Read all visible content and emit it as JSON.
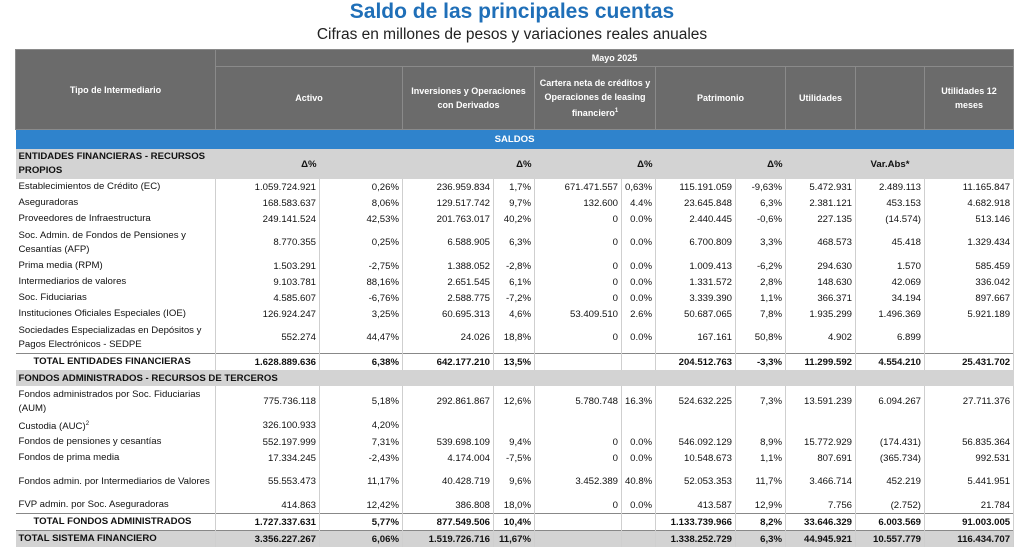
{
  "title": "Saldo de las principales cuentas",
  "subtitle": "Cifras en millones de pesos y variaciones reales anuales",
  "header": {
    "period": "Mayo 2025",
    "tipo": "Tipo de Intermediario",
    "activo": "Activo",
    "inversiones": "Inversiones y Operaciones con Derivados",
    "cartera": "Cartera neta de créditos y Operaciones de leasing financiero",
    "cartera_sup": "1",
    "patrimonio": "Patrimonio",
    "utilidades": "Utilidades",
    "utilidades12": "Utilidades 12 meses"
  },
  "saldos_label": "SALDOS",
  "sections": {
    "propios": {
      "label": "ENTIDADES FINANCIERAS - RECURSOS PROPIOS",
      "delta": "Δ%",
      "varabs": "Var.Abs*"
    },
    "terceros": {
      "label": "FONDOS ADMINISTRADOS - RECURSOS DE TERCEROS"
    }
  },
  "rows": [
    {
      "name": "Establecimientos de Crédito (EC)",
      "activo": "1.059.724.921",
      "a_pct": "0,26%",
      "inv": "236.959.834",
      "i_pct": "1,7%",
      "cartera": "671.471.557",
      "c_pct": "0,63%",
      "patrimonio": "115.191.059",
      "p_pct": "-9,63%",
      "util": "5.472.931",
      "varabs": "2.489.113",
      "util12": "11.165.847"
    },
    {
      "name": "Aseguradoras",
      "activo": "168.583.637",
      "a_pct": "8,06%",
      "inv": "129.517.742",
      "i_pct": "9,7%",
      "cartera": "132.600",
      "c_pct": "4.4%",
      "patrimonio": "23.645.848",
      "p_pct": "6,3%",
      "util": "2.381.121",
      "varabs": "453.153",
      "util12": "4.682.918"
    },
    {
      "name": "Proveedores de Infraestructura",
      "activo": "249.141.524",
      "a_pct": "42,53%",
      "inv": "201.763.017",
      "i_pct": "40,2%",
      "cartera": "0",
      "c_pct": "0.0%",
      "patrimonio": "2.440.445",
      "p_pct": "-0,6%",
      "util": "227.135",
      "varabs": "(14.574)",
      "util12": "513.146"
    },
    {
      "name": "Soc. Admin. de Fondos de Pensiones y Cesantías (AFP)",
      "activo": "8.770.355",
      "a_pct": "0,25%",
      "inv": "6.588.905",
      "i_pct": "6,3%",
      "cartera": "0",
      "c_pct": "0.0%",
      "patrimonio": "6.700.809",
      "p_pct": "3,3%",
      "util": "468.573",
      "varabs": "45.418",
      "util12": "1.329.434",
      "tall": true
    },
    {
      "name": "Prima media (RPM)",
      "activo": "1.503.291",
      "a_pct": "-2,75%",
      "inv": "1.388.052",
      "i_pct": "-2,8%",
      "cartera": "0",
      "c_pct": "0.0%",
      "patrimonio": "1.009.413",
      "p_pct": "-6,2%",
      "util": "294.630",
      "varabs": "1.570",
      "util12": "585.459"
    },
    {
      "name": "Intermediarios de valores",
      "activo": "9.103.781",
      "a_pct": "88,16%",
      "inv": "2.651.545",
      "i_pct": "6,1%",
      "cartera": "0",
      "c_pct": "0.0%",
      "patrimonio": "1.331.572",
      "p_pct": "2,8%",
      "util": "148.630",
      "varabs": "42.069",
      "util12": "336.042"
    },
    {
      "name": "Soc. Fiduciarias",
      "activo": "4.585.607",
      "a_pct": "-6,76%",
      "inv": "2.588.775",
      "i_pct": "-7,2%",
      "cartera": "0",
      "c_pct": "0.0%",
      "patrimonio": "3.339.390",
      "p_pct": "1,1%",
      "util": "366.371",
      "varabs": "34.194",
      "util12": "897.667"
    },
    {
      "name": "Instituciones Oficiales Especiales (IOE)",
      "activo": "126.924.247",
      "a_pct": "3,25%",
      "inv": "60.695.313",
      "i_pct": "4,6%",
      "cartera": "53.409.510",
      "c_pct": "2.6%",
      "patrimonio": "50.687.065",
      "p_pct": "7,8%",
      "util": "1.935.299",
      "varabs": "1.496.369",
      "util12": "5.921.189"
    },
    {
      "name": "Sociedades Especializadas en Depósitos y Pagos Electrónicos - SEDPE",
      "activo": "552.274",
      "a_pct": "44,47%",
      "inv": "24.026",
      "i_pct": "18,8%",
      "cartera": "0",
      "c_pct": "0.0%",
      "patrimonio": "167.161",
      "p_pct": "50,8%",
      "util": "4.902",
      "varabs": "6.899",
      "util12": "",
      "tall": true
    },
    {
      "name": "TOTAL ENTIDADES FINANCIERAS",
      "activo": "1.628.889.636",
      "a_pct": "6,38%",
      "inv": "642.177.210",
      "i_pct": "13,5%",
      "cartera": "",
      "c_pct": "",
      "patrimonio": "204.512.763",
      "p_pct": "-3,3%",
      "util": "11.299.592",
      "varabs": "4.554.210",
      "util12": "25.431.702",
      "total": true
    }
  ],
  "rows2": [
    {
      "name": "Fondos administrados por Soc. Fiduciarias (AUM)",
      "activo": "775.736.118",
      "a_pct": "5,18%",
      "inv": "292.861.867",
      "i_pct": "12,6%",
      "cartera": "5.780.748",
      "c_pct": "16.3%",
      "patrimonio": "524.632.225",
      "p_pct": "7,3%",
      "util": "13.591.239",
      "varabs": "6.094.267",
      "util12": "27.711.376",
      "tall": true
    },
    {
      "name": "Custodia (AUC)",
      "sup": "2",
      "activo": "326.100.933",
      "a_pct": "4,20%",
      "inv": "",
      "i_pct": "",
      "cartera": "",
      "c_pct": "",
      "patrimonio": "",
      "p_pct": "",
      "util": "",
      "varabs": "",
      "util12": ""
    },
    {
      "name": "Fondos de pensiones y cesantías",
      "activo": "552.197.999",
      "a_pct": "7,31%",
      "inv": "539.698.109",
      "i_pct": "9,4%",
      "cartera": "0",
      "c_pct": "0.0%",
      "patrimonio": "546.092.129",
      "p_pct": "8,9%",
      "util": "15.772.929",
      "varabs": "(174.431)",
      "util12": "56.835.364"
    },
    {
      "name": "Fondos de prima media",
      "activo": "17.334.245",
      "a_pct": "-2,43%",
      "inv": "4.174.004",
      "i_pct": "-7,5%",
      "cartera": "0",
      "c_pct": "0.0%",
      "patrimonio": "10.548.673",
      "p_pct": "1,1%",
      "util": "807.691",
      "varabs": "(365.734)",
      "util12": "992.531"
    },
    {
      "name": "Fondos admin. por Intermediarios de Valores",
      "activo": "55.553.473",
      "a_pct": "11,17%",
      "inv": "40.428.719",
      "i_pct": "9,6%",
      "cartera": "3.452.389",
      "c_pct": "40.8%",
      "patrimonio": "52.053.353",
      "p_pct": "11,7%",
      "util": "3.466.714",
      "varabs": "452.219",
      "util12": "5.441.951",
      "tall": true
    },
    {
      "name": "FVP admin. por Soc. Aseguradoras",
      "activo": "414.863",
      "a_pct": "12,42%",
      "inv": "386.808",
      "i_pct": "18,0%",
      "cartera": "0",
      "c_pct": "0.0%",
      "patrimonio": "413.587",
      "p_pct": "12,9%",
      "util": "7.756",
      "varabs": "(2.752)",
      "util12": "21.784"
    },
    {
      "name": "TOTAL FONDOS ADMINISTRADOS",
      "activo": "1.727.337.631",
      "a_pct": "5,77%",
      "inv": "877.549.506",
      "i_pct": "10,4%",
      "cartera": "",
      "c_pct": "",
      "patrimonio": "1.133.739.966",
      "p_pct": "8,2%",
      "util": "33.646.329",
      "varabs": "6.003.569",
      "util12": "91.003.005",
      "total": true
    }
  ],
  "grand": {
    "name": "TOTAL SISTEMA FINANCIERO",
    "activo": "3.356.227.267",
    "a_pct": "6,06%",
    "inv": "1.519.726.716",
    "i_pct": "11,67%",
    "cartera": "",
    "c_pct": "",
    "patrimonio": "1.338.252.729",
    "p_pct": "6,3%",
    "util": "44.945.921",
    "varabs": "10.557.779",
    "util12": "116.434.707"
  }
}
